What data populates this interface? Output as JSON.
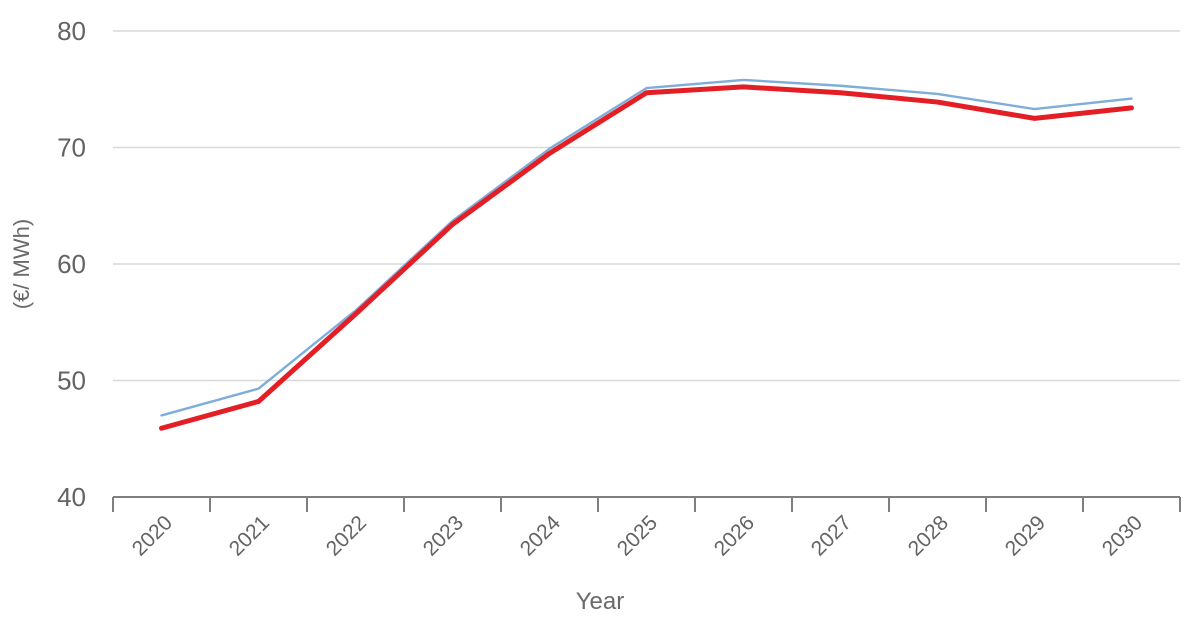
{
  "chart_data": {
    "type": "line",
    "title": "",
    "xlabel": "Year",
    "ylabel": "(€/ MWh)",
    "categories": [
      "2020",
      "2021",
      "2022",
      "2023",
      "2024",
      "2025",
      "2026",
      "2027",
      "2028",
      "2029",
      "2030"
    ],
    "series": [
      {
        "name": "blue-line",
        "color": "#7fadd9",
        "stroke_width": 2.4,
        "values": [
          47.0,
          49.3,
          56.0,
          63.7,
          69.9,
          75.1,
          75.8,
          75.3,
          74.6,
          73.3,
          74.2
        ]
      },
      {
        "name": "red-line",
        "color": "#e41e25",
        "stroke_width": 5,
        "values": [
          45.9,
          48.2,
          55.7,
          63.4,
          69.5,
          74.7,
          75.2,
          74.7,
          73.9,
          72.5,
          73.4
        ]
      }
    ],
    "ylim": [
      40,
      80
    ],
    "yticks": [
      "40",
      "50",
      "60",
      "70",
      "80"
    ],
    "grid": "horizontal",
    "legend": "none",
    "colors": {
      "axis": "#7f7f7f",
      "gridline": "#d9d9d9",
      "tick_label": "#636363",
      "axis_title": "#6a6a6a",
      "background": "#ffffff"
    }
  }
}
